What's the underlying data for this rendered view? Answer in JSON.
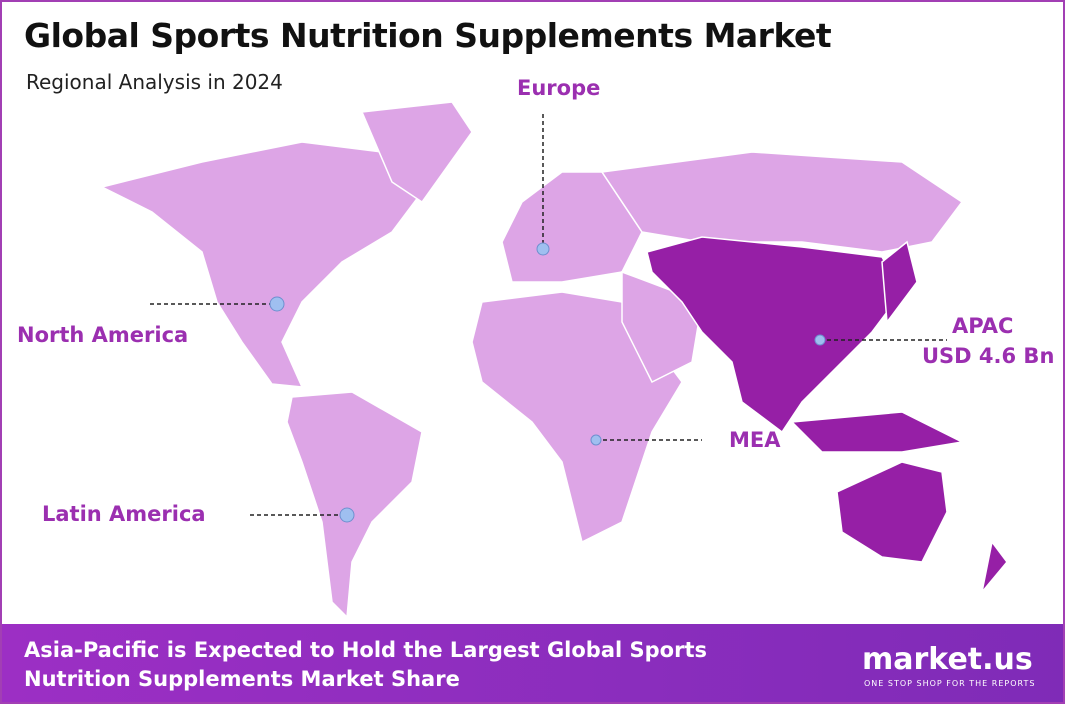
{
  "header": {
    "title": "Global Sports Nutrition Supplements Market",
    "subtitle": "Regional Analysis in 2024"
  },
  "regions": [
    {
      "label": "Europe"
    },
    {
      "label": "North America"
    },
    {
      "label": "APAC",
      "value": "USD 4.6 Bn"
    },
    {
      "label": "MEA"
    },
    {
      "label": "Latin America"
    }
  ],
  "footer": {
    "text": "Asia-Pacific is Expected to Hold the Largest Global Sports Nutrition Supplements Market Share"
  },
  "logo": {
    "name": "market.us",
    "tagline": "ONE STOP SHOP FOR THE REPORTS"
  }
}
